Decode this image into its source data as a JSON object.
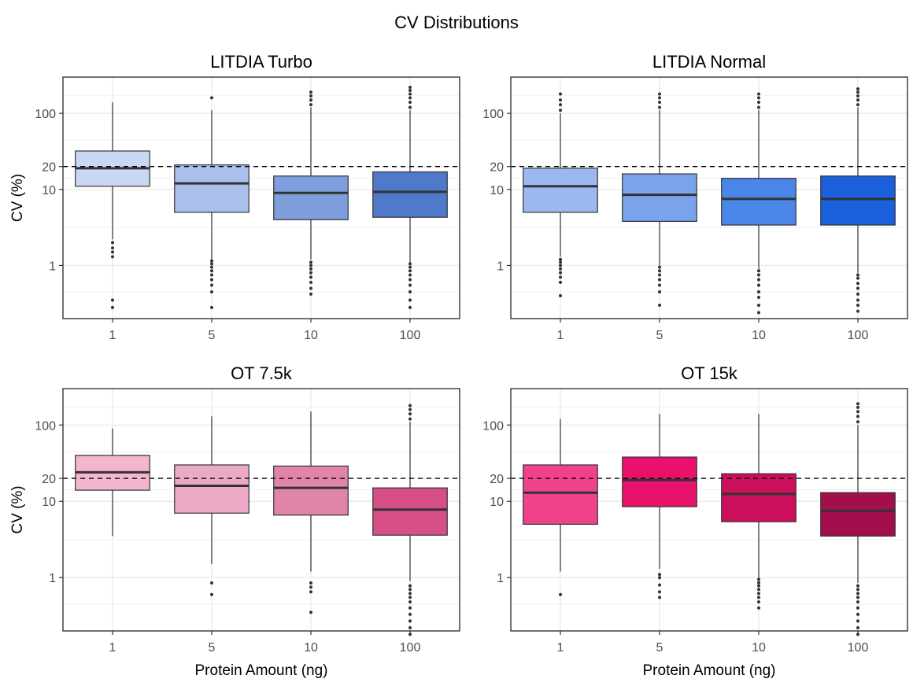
{
  "title": "CV Distributions",
  "chart_data": [
    {
      "type": "boxplot",
      "title": "LITDIA Turbo",
      "xlabel": "",
      "ylabel": "CV (%)",
      "yscale": "log10",
      "ylim": [
        0.2,
        300
      ],
      "yticks": [
        1,
        10,
        20,
        100
      ],
      "reference_line": 20,
      "grid": true,
      "categories": [
        "1",
        "5",
        "10",
        "100"
      ],
      "colors": [
        "#c9d7f2",
        "#a8c0ea",
        "#7e9fdc",
        "#4f79c9"
      ],
      "boxes": [
        {
          "q1": 11,
          "median": 19,
          "q3": 32,
          "whisker_low": 2.2,
          "whisker_high": 140,
          "outliers": [
            0.28,
            0.35,
            1.3,
            1.5,
            1.7,
            2
          ]
        },
        {
          "q1": 5,
          "median": 12,
          "q3": 21,
          "whisker_low": 1.2,
          "whisker_high": 110,
          "outliers": [
            0.28,
            0.45,
            0.55,
            0.65,
            0.75,
            0.85,
            0.95,
            1.05,
            1.15,
            160
          ]
        },
        {
          "q1": 4,
          "median": 9,
          "q3": 15,
          "whisker_low": 1.2,
          "whisker_high": 120,
          "outliers": [
            0.42,
            0.5,
            0.6,
            0.7,
            0.8,
            0.9,
            1,
            1.1,
            130,
            150,
            170,
            190
          ]
        },
        {
          "q1": 4.3,
          "median": 9.3,
          "q3": 17,
          "whisker_low": 1.1,
          "whisker_high": 110,
          "outliers": [
            0.28,
            0.35,
            0.45,
            0.55,
            0.65,
            0.75,
            0.85,
            0.95,
            1.05,
            120,
            140,
            160,
            180,
            200,
            220
          ]
        }
      ]
    },
    {
      "type": "boxplot",
      "title": "LITDIA Normal",
      "xlabel": "",
      "ylabel": "",
      "yscale": "log10",
      "ylim": [
        0.2,
        300
      ],
      "yticks": [
        1,
        10,
        20,
        100
      ],
      "reference_line": 20,
      "grid": true,
      "categories": [
        "1",
        "5",
        "10",
        "100"
      ],
      "colors": [
        "#9cb8ee",
        "#7aa3ec",
        "#4a86e8",
        "#1a5fdb"
      ],
      "boxes": [
        {
          "q1": 5,
          "median": 11,
          "q3": 19,
          "whisker_low": 1.3,
          "whisker_high": 100,
          "outliers": [
            0.4,
            0.6,
            0.7,
            0.8,
            0.9,
            1,
            1.1,
            1.2,
            110,
            130,
            150,
            180
          ]
        },
        {
          "q1": 3.8,
          "median": 8.5,
          "q3": 16,
          "whisker_low": 1,
          "whisker_high": 110,
          "outliers": [
            0.3,
            0.45,
            0.55,
            0.65,
            0.75,
            0.85,
            0.95,
            120,
            140,
            160,
            180
          ]
        },
        {
          "q1": 3.4,
          "median": 7.5,
          "q3": 14,
          "whisker_low": 0.9,
          "whisker_high": 110,
          "outliers": [
            0.24,
            0.3,
            0.38,
            0.45,
            0.55,
            0.65,
            0.75,
            0.85,
            120,
            140,
            160,
            180
          ]
        },
        {
          "q1": 3.4,
          "median": 7.5,
          "q3": 15,
          "whisker_low": 0.8,
          "whisker_high": 120,
          "outliers": [
            0.25,
            0.3,
            0.35,
            0.42,
            0.5,
            0.58,
            0.68,
            0.75,
            130,
            150,
            170,
            190,
            210
          ]
        }
      ]
    },
    {
      "type": "boxplot",
      "title": "OT 7.5k",
      "xlabel": "Protein Amount (ng)",
      "ylabel": "CV (%)",
      "yscale": "log10",
      "ylim": [
        0.2,
        300
      ],
      "yticks": [
        1,
        10,
        20,
        100
      ],
      "reference_line": 20,
      "grid": true,
      "categories": [
        "1",
        "5",
        "10",
        "100"
      ],
      "colors": [
        "#f3b6cf",
        "#eba9c5",
        "#e085a9",
        "#d64f86"
      ],
      "boxes": [
        {
          "q1": 14,
          "median": 24,
          "q3": 40,
          "whisker_low": 3.5,
          "whisker_high": 90,
          "outliers": []
        },
        {
          "q1": 7,
          "median": 16,
          "q3": 30,
          "whisker_low": 1.5,
          "whisker_high": 130,
          "outliers": [
            0.6,
            0.85
          ]
        },
        {
          "q1": 6.6,
          "median": 15,
          "q3": 29,
          "whisker_low": 1.2,
          "whisker_high": 150,
          "outliers": [
            0.35,
            0.65,
            0.75,
            0.85
          ]
        },
        {
          "q1": 3.6,
          "median": 7.8,
          "q3": 15,
          "whisker_low": 0.9,
          "whisker_high": 110,
          "outliers": [
            0.18,
            0.22,
            0.27,
            0.33,
            0.4,
            0.48,
            0.55,
            0.62,
            0.7,
            0.78,
            120,
            140,
            160,
            180
          ]
        }
      ]
    },
    {
      "type": "boxplot",
      "title": "OT 15k",
      "xlabel": "Protein Amount (ng)",
      "ylabel": "",
      "yscale": "log10",
      "ylim": [
        0.2,
        300
      ],
      "yticks": [
        1,
        10,
        20,
        100
      ],
      "reference_line": 20,
      "grid": true,
      "categories": [
        "1",
        "5",
        "10",
        "100"
      ],
      "colors": [
        "#f0428a",
        "#e8126c",
        "#cc0f5c",
        "#a30e4d"
      ],
      "boxes": [
        {
          "q1": 5,
          "median": 13,
          "q3": 30,
          "whisker_low": 1.2,
          "whisker_high": 120,
          "outliers": [
            0.6
          ]
        },
        {
          "q1": 8.5,
          "median": 19,
          "q3": 38,
          "whisker_low": 1.3,
          "whisker_high": 140,
          "outliers": [
            0.55,
            0.65,
            0.8,
            1,
            1.1
          ]
        },
        {
          "q1": 5.4,
          "median": 12.5,
          "q3": 23,
          "whisker_low": 1,
          "whisker_high": 140,
          "outliers": [
            0.4,
            0.48,
            0.55,
            0.62,
            0.7,
            0.78,
            0.86,
            0.95
          ]
        },
        {
          "q1": 3.5,
          "median": 7.5,
          "q3": 13,
          "whisker_low": 0.85,
          "whisker_high": 100,
          "outliers": [
            0.18,
            0.22,
            0.27,
            0.33,
            0.4,
            0.48,
            0.55,
            0.62,
            0.7,
            0.78,
            110,
            130,
            150,
            170,
            190
          ]
        }
      ]
    }
  ]
}
